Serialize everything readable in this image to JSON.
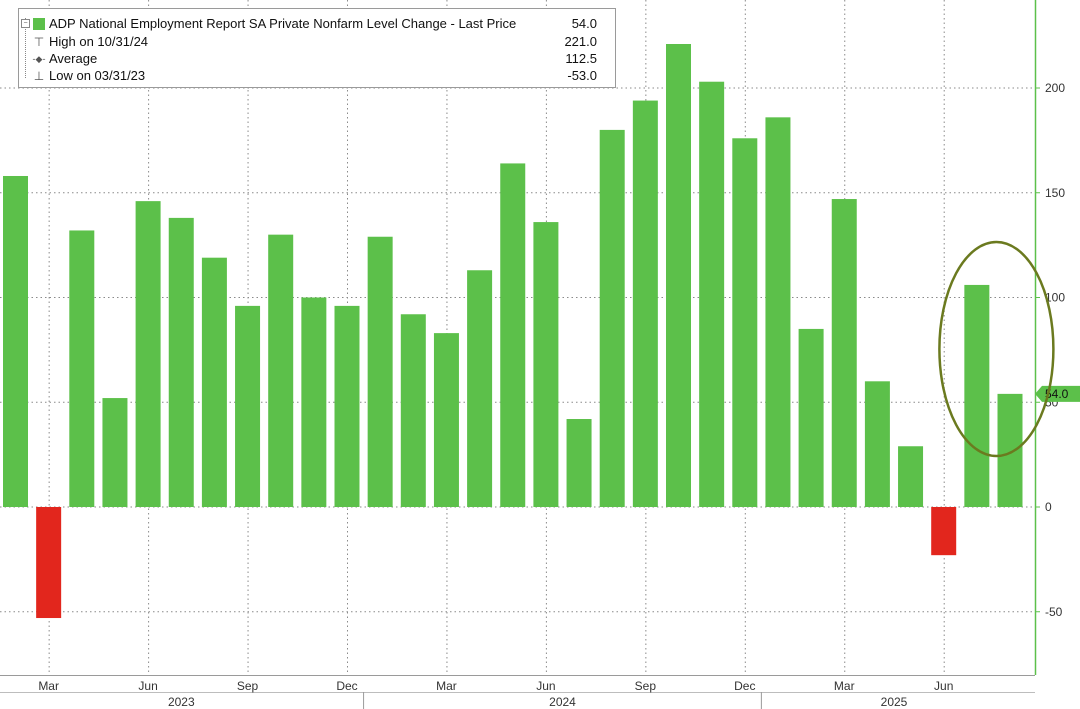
{
  "legend": {
    "title": "ADP National Employment Report SA Private Nonfarm Level Change - Last Price",
    "last_value": "54.0",
    "rows": [
      {
        "label": "High on 10/31/24",
        "value": "221.0",
        "glyph": "⊤"
      },
      {
        "label": "Average",
        "value": "112.5",
        "glyph": "-◆-"
      },
      {
        "label": "Low on 03/31/23",
        "value": "-53.0",
        "glyph": "⊥"
      }
    ]
  },
  "last_price_label": "54.0",
  "colors": {
    "positive": "#5cc04a",
    "negative": "#e2261d",
    "annotation": "#6b7a1f",
    "axis_line": "#5cc04a"
  },
  "chart_data": {
    "type": "bar",
    "categories": [
      "2023-02",
      "2023-03",
      "2023-04",
      "2023-05",
      "2023-06",
      "2023-07",
      "2023-08",
      "2023-09",
      "2023-10",
      "2023-11",
      "2023-12",
      "2024-01",
      "2024-02",
      "2024-03",
      "2024-04",
      "2024-05",
      "2024-06",
      "2024-07",
      "2024-08",
      "2024-09",
      "2024-10",
      "2024-11",
      "2024-12",
      "2025-01",
      "2025-02",
      "2025-03",
      "2025-04",
      "2025-05",
      "2025-06",
      "2025-07",
      "2025-08"
    ],
    "values": [
      158,
      -53,
      132,
      52,
      146,
      138,
      119,
      96,
      130,
      100,
      96,
      129,
      92,
      83,
      113,
      164,
      136,
      42,
      180,
      194,
      221,
      203,
      176,
      186,
      85,
      147,
      60,
      29,
      -23,
      106,
      54
    ],
    "ylim": [
      -80,
      240
    ],
    "y_ticks": [
      -50,
      0,
      50,
      100,
      150,
      200
    ],
    "y_tick_labels": [
      "-50",
      "0",
      "50",
      "100",
      "150",
      "200"
    ],
    "month_labels": [
      {
        "index": 1,
        "label": "Mar"
      },
      {
        "index": 4,
        "label": "Jun"
      },
      {
        "index": 7,
        "label": "Sep"
      },
      {
        "index": 10,
        "label": "Dec"
      },
      {
        "index": 13,
        "label": "Mar"
      },
      {
        "index": 16,
        "label": "Jun"
      },
      {
        "index": 19,
        "label": "Sep"
      },
      {
        "index": 22,
        "label": "Dec"
      },
      {
        "index": 25,
        "label": "Mar"
      },
      {
        "index": 28,
        "label": "Jun"
      }
    ],
    "year_labels": [
      {
        "label": "2023",
        "start": 0,
        "end": 10
      },
      {
        "label": "2024",
        "start": 11,
        "end": 22
      },
      {
        "label": "2025",
        "start": 23,
        "end": 30
      }
    ],
    "highlighted_indices": [
      29,
      30
    ],
    "grid": true,
    "legend_position": "top-left"
  }
}
